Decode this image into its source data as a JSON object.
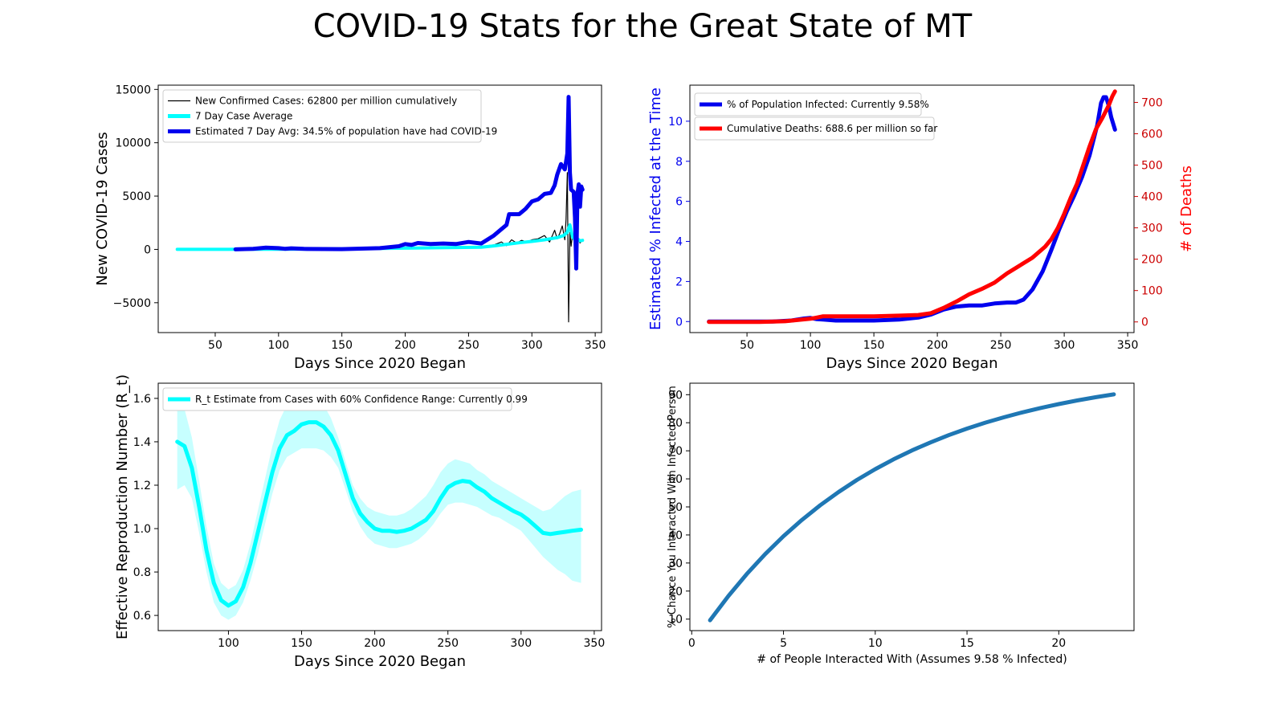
{
  "title": "COVID-19 Stats for the Great State of MT",
  "colors": {
    "blue": "#0000ee",
    "cyan": "#00ffff",
    "red": "#ff0000",
    "steel": "#1f77b4",
    "black": "#000000"
  },
  "chart_data": [
    {
      "id": "cases",
      "type": "line",
      "xlabel": "Days Since 2020 Began",
      "ylabel": "New COVID-19 Cases",
      "xlim": [
        5,
        355
      ],
      "ylim": [
        -7800,
        15400
      ],
      "xticks": [
        50,
        100,
        150,
        200,
        250,
        300,
        350
      ],
      "yticks": [
        -5000,
        0,
        5000,
        10000,
        15000
      ],
      "ytick_labels": [
        "−5000",
        "0",
        "5000",
        "10000",
        "15000"
      ],
      "legend_position": "upper-left",
      "series": [
        {
          "name": "New Confirmed Cases: 62800 per million cumulatively",
          "color": "#000000",
          "width": 1.2,
          "x": [
            20,
            60,
            100,
            150,
            200,
            240,
            260,
            270,
            276,
            280,
            284,
            288,
            292,
            296,
            300,
            305,
            310,
            314,
            318,
            320,
            322,
            324,
            326,
            327,
            328,
            329,
            330,
            331,
            332,
            334,
            336,
            338,
            340
          ],
          "y": [
            0,
            0,
            30,
            50,
            150,
            200,
            280,
            420,
            700,
            350,
            900,
            600,
            850,
            700,
            900,
            1000,
            1300,
            700,
            1800,
            1000,
            1500,
            2200,
            900,
            2800,
            7200,
            -6800,
            1600,
            300,
            1300,
            800,
            1200,
            600,
            900
          ]
        },
        {
          "name": "7 Day Case Average",
          "color": "#00ffff",
          "width": 4,
          "x": [
            20,
            60,
            100,
            150,
            200,
            240,
            260,
            270,
            280,
            290,
            300,
            310,
            320,
            325,
            328,
            330,
            332,
            334,
            336,
            338,
            340
          ],
          "y": [
            0,
            0,
            20,
            40,
            120,
            180,
            200,
            330,
            480,
            620,
            750,
            900,
            1100,
            1300,
            1600,
            2300,
            1200,
            900,
            1000,
            800,
            850
          ]
        },
        {
          "name": "Estimated 7 Day Avg: 34.5% of population have had COVID-19",
          "color": "#0000ee",
          "width": 5,
          "x": [
            66,
            80,
            90,
            100,
            105,
            110,
            120,
            150,
            180,
            195,
            200,
            205,
            210,
            220,
            230,
            240,
            250,
            260,
            270,
            276,
            280,
            282,
            290,
            295,
            300,
            305,
            310,
            315,
            318,
            320,
            323,
            326,
            328,
            329,
            330,
            331,
            333,
            334,
            335,
            336,
            337,
            338,
            339,
            340
          ],
          "y": [
            0,
            50,
            160,
            120,
            60,
            100,
            50,
            30,
            120,
            300,
            500,
            420,
            600,
            500,
            550,
            500,
            700,
            550,
            1300,
            1900,
            2300,
            3300,
            3300,
            3800,
            4500,
            4700,
            5200,
            5300,
            6000,
            7000,
            8000,
            7500,
            9000,
            14300,
            7200,
            5600,
            5400,
            3000,
            -1800,
            5200,
            6100,
            4000,
            5900,
            5600
          ]
        }
      ]
    },
    {
      "id": "infected",
      "type": "line",
      "xlabel": "Days Since 2020 Began",
      "ylabel_left": "Estimated % Infected at the Time",
      "ylabel_right": "# of Deaths",
      "xlim": [
        5,
        355
      ],
      "ylim_left": [
        -0.55,
        11.8
      ],
      "ylim_right": [
        -34,
        755
      ],
      "xticks": [
        50,
        100,
        150,
        200,
        250,
        300,
        350
      ],
      "yticks_left": [
        0,
        2,
        4,
        6,
        8,
        10
      ],
      "yticks_right": [
        0,
        100,
        200,
        300,
        400,
        500,
        600,
        700
      ],
      "legend_position": "upper-left",
      "series": [
        {
          "name": "% of Population Infected: Currently 9.58%",
          "axis": "left",
          "color": "#0000ee",
          "width": 5,
          "x": [
            20,
            70,
            85,
            95,
            100,
            105,
            110,
            120,
            150,
            170,
            185,
            195,
            205,
            215,
            225,
            235,
            245,
            255,
            262,
            268,
            275,
            283,
            290,
            296,
            302,
            308,
            314,
            320,
            326,
            329,
            331,
            333,
            335,
            337,
            340
          ],
          "y": [
            0,
            0,
            0.05,
            0.15,
            0.18,
            0.12,
            0.1,
            0.05,
            0.05,
            0.1,
            0.2,
            0.35,
            0.6,
            0.75,
            0.8,
            0.8,
            0.9,
            0.95,
            0.95,
            1.1,
            1.6,
            2.5,
            3.6,
            4.6,
            5.5,
            6.3,
            7.2,
            8.3,
            9.8,
            10.9,
            11.2,
            11.2,
            10.8,
            10.2,
            9.58
          ]
        },
        {
          "name": "Cumulative Deaths: 688.6 per million so far",
          "axis": "right",
          "color": "#ff0000",
          "width": 5,
          "x": [
            20,
            60,
            80,
            100,
            105,
            110,
            115,
            120,
            150,
            170,
            185,
            195,
            205,
            215,
            225,
            235,
            245,
            255,
            265,
            275,
            285,
            290,
            295,
            300,
            305,
            310,
            315,
            320,
            325,
            330,
            335,
            338,
            340
          ],
          "y": [
            0,
            0,
            2,
            10,
            14,
            18,
            18,
            18,
            18,
            20,
            22,
            28,
            45,
            65,
            88,
            105,
            125,
            155,
            180,
            205,
            240,
            265,
            300,
            345,
            395,
            440,
            500,
            560,
            615,
            650,
            690,
            720,
            735
          ]
        }
      ]
    },
    {
      "id": "rt",
      "type": "line",
      "xlabel": "Days Since 2020 Began",
      "ylabel": "Effective Reproduction Number (R_t)",
      "xlim": [
        52,
        355
      ],
      "ylim": [
        0.53,
        1.67
      ],
      "xticks": [
        100,
        150,
        200,
        250,
        300,
        350
      ],
      "yticks": [
        0.6,
        0.8,
        1.0,
        1.2,
        1.4,
        1.6
      ],
      "ytick_labels": [
        "0.6",
        "0.8",
        "1.0",
        "1.2",
        "1.4",
        "1.6"
      ],
      "legend_position": "upper-left",
      "series": [
        {
          "name": "R_t Estimate from Cases with 60% Confidence Range: Currently 0.99",
          "color": "#00ffff",
          "width": 5,
          "x": [
            65,
            70,
            75,
            80,
            85,
            90,
            95,
            100,
            105,
            110,
            115,
            120,
            125,
            130,
            135,
            140,
            145,
            150,
            155,
            160,
            165,
            170,
            175,
            180,
            185,
            190,
            195,
            200,
            205,
            210,
            215,
            220,
            225,
            230,
            235,
            240,
            245,
            250,
            255,
            260,
            265,
            270,
            275,
            280,
            285,
            290,
            295,
            300,
            305,
            310,
            315,
            320,
            325,
            330,
            335,
            341
          ],
          "y": [
            1.4,
            1.38,
            1.28,
            1.1,
            0.9,
            0.75,
            0.67,
            0.645,
            0.665,
            0.73,
            0.84,
            0.98,
            1.12,
            1.26,
            1.37,
            1.43,
            1.45,
            1.48,
            1.49,
            1.49,
            1.47,
            1.43,
            1.36,
            1.25,
            1.14,
            1.07,
            1.03,
            1.0,
            0.99,
            0.99,
            0.985,
            0.99,
            1.0,
            1.02,
            1.04,
            1.08,
            1.14,
            1.19,
            1.21,
            1.22,
            1.215,
            1.19,
            1.17,
            1.14,
            1.12,
            1.1,
            1.08,
            1.065,
            1.04,
            1.01,
            0.98,
            0.975,
            0.98,
            0.985,
            0.99,
            0.995
          ],
          "band_upper": [
            1.62,
            1.55,
            1.42,
            1.22,
            1.01,
            0.84,
            0.75,
            0.72,
            0.74,
            0.81,
            0.93,
            1.08,
            1.23,
            1.38,
            1.5,
            1.57,
            1.6,
            1.62,
            1.62,
            1.61,
            1.57,
            1.51,
            1.42,
            1.31,
            1.2,
            1.14,
            1.1,
            1.08,
            1.07,
            1.06,
            1.06,
            1.07,
            1.09,
            1.12,
            1.15,
            1.2,
            1.26,
            1.3,
            1.32,
            1.31,
            1.3,
            1.27,
            1.25,
            1.22,
            1.2,
            1.18,
            1.16,
            1.14,
            1.12,
            1.1,
            1.08,
            1.09,
            1.12,
            1.15,
            1.17,
            1.18
          ],
          "band_lower": [
            1.18,
            1.2,
            1.14,
            0.98,
            0.8,
            0.66,
            0.6,
            0.58,
            0.6,
            0.66,
            0.76,
            0.88,
            1.02,
            1.16,
            1.27,
            1.33,
            1.35,
            1.37,
            1.37,
            1.37,
            1.36,
            1.33,
            1.28,
            1.18,
            1.08,
            1.01,
            0.96,
            0.93,
            0.92,
            0.91,
            0.91,
            0.92,
            0.93,
            0.95,
            0.98,
            1.02,
            1.07,
            1.11,
            1.12,
            1.12,
            1.11,
            1.1,
            1.08,
            1.06,
            1.05,
            1.03,
            1.01,
            0.99,
            0.95,
            0.91,
            0.87,
            0.84,
            0.81,
            0.79,
            0.76,
            0.75
          ]
        }
      ]
    },
    {
      "id": "chance",
      "type": "line",
      "xlabel": "# of People Interacted With (Assumes 9.58 % Infected)",
      "ylabel": "% Chance You Interacted With Infected Person",
      "xlim": [
        -0.1,
        24.1
      ],
      "ylim": [
        5.9,
        94.1
      ],
      "xticks": [
        0,
        5,
        10,
        15,
        20
      ],
      "yticks": [
        10,
        20,
        30,
        40,
        50,
        60,
        70,
        80,
        90
      ],
      "series": [
        {
          "color": "#1f77b4",
          "width": 5,
          "x": [
            1,
            2,
            3,
            4,
            5,
            6,
            7,
            8,
            9,
            10,
            11,
            12,
            13,
            14,
            15,
            16,
            17,
            18,
            19,
            20,
            21,
            22,
            23
          ],
          "y": [
            9.58,
            18.24,
            26.07,
            33.15,
            39.55,
            45.34,
            50.58,
            55.31,
            59.59,
            63.46,
            66.96,
            70.12,
            72.98,
            75.57,
            77.91,
            80.03,
            81.94,
            83.67,
            85.24,
            86.65,
            87.93,
            89.09,
            90.13
          ]
        }
      ]
    }
  ]
}
